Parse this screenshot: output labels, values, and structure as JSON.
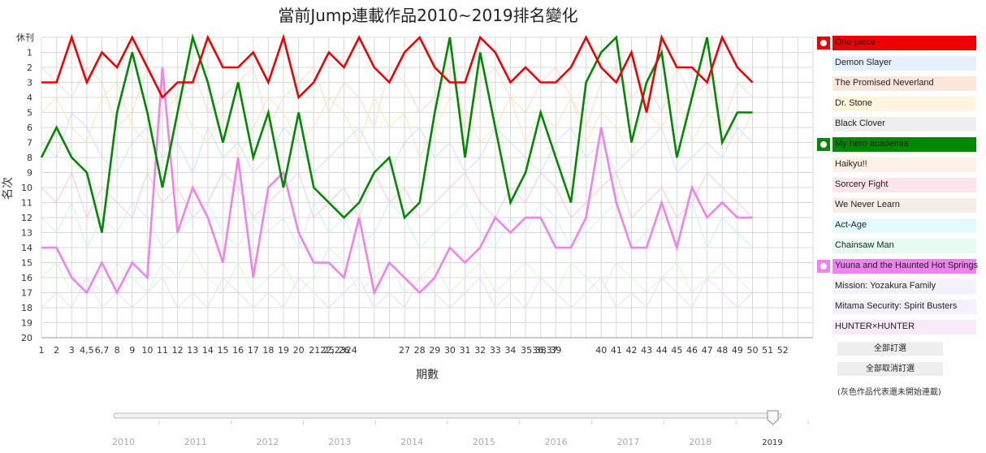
{
  "chart_data": {
    "type": "line",
    "title": "當前Jump連載作品2010~2019排名變化",
    "xlabel": "期數",
    "ylabel": "名次",
    "y_top_label": "休刊",
    "y_ticks": [
      "1",
      "2",
      "3",
      "4",
      "5",
      "6",
      "7",
      "8",
      "9",
      "10",
      "11",
      "12",
      "13",
      "14",
      "15",
      "16",
      "17",
      "18",
      "19",
      "20"
    ],
    "x_tick_labels": [
      "1",
      "2",
      "3",
      "4,5",
      "6,7",
      "8",
      "9",
      "10",
      "11",
      "12",
      "13",
      "14",
      "15",
      "16",
      "17",
      "18",
      "19",
      "20",
      "2122,2324",
      "25",
      "26",
      "27",
      "28",
      "29",
      "30",
      "31",
      "32",
      "33",
      "34",
      "3536,37",
      "38",
      "39",
      "40",
      "41",
      "42",
      "43",
      "44",
      "45",
      "46",
      "47",
      "48",
      "49",
      "50",
      "51",
      "52"
    ],
    "x_tick_slots": [
      1,
      2,
      3,
      4,
      5,
      6,
      7,
      8,
      9,
      10,
      11,
      12,
      13,
      14,
      15,
      16,
      17,
      18,
      19,
      20,
      21,
      22,
      23,
      24,
      25,
      26,
      27,
      28,
      29,
      30,
      31,
      32,
      33,
      34,
      35,
      36,
      37,
      38,
      39,
      40,
      41,
      42,
      43,
      44,
      45,
      46,
      47,
      48,
      49,
      50,
      51,
      52
    ],
    "x_tick_text_slots": [
      1,
      2,
      3,
      4,
      5,
      6,
      7,
      8,
      9,
      10,
      11,
      12,
      13,
      14,
      15,
      16,
      17,
      18,
      19,
      20,
      21,
      25,
      26,
      27,
      28,
      29,
      30,
      31,
      32,
      33,
      34,
      35,
      38,
      39,
      40,
      41,
      42,
      43,
      44,
      45,
      46,
      47,
      48,
      49,
      50,
      51,
      52
    ],
    "ylim": [
      0,
      20
    ],
    "grid": true,
    "legend_placement": "right",
    "series": [
      {
        "name": "One piece",
        "color": "#ee0000",
        "selected": true,
        "values": [
          3,
          3,
          0,
          3,
          1,
          2,
          0,
          2,
          4,
          3,
          3,
          0,
          2,
          2,
          1,
          3,
          0,
          4,
          3,
          1,
          2,
          0,
          2,
          3,
          1,
          0,
          2,
          3,
          3,
          0,
          1,
          3,
          2,
          3,
          3,
          2,
          0,
          2,
          3,
          1,
          5,
          0,
          2,
          2,
          3,
          0,
          2,
          3
        ]
      },
      {
        "name": "Demon Slayer",
        "color": "#e6f0fc",
        "selected": false
      },
      {
        "name": "The Promised Neverland",
        "color": "#fde6dc",
        "selected": false
      },
      {
        "name": "Dr. Stone",
        "color": "#fdf6dc",
        "selected": false
      },
      {
        "name": "Black Clover",
        "color": "#eeeeee",
        "selected": false
      },
      {
        "name": "My hero academia",
        "color": "#008800",
        "selected": true,
        "values": [
          8,
          6,
          8,
          9,
          13,
          5,
          1,
          5,
          10,
          5,
          0,
          3,
          7,
          3,
          8,
          5,
          10,
          5,
          10,
          11,
          12,
          11,
          9,
          8,
          12,
          11,
          5,
          0,
          8,
          1,
          6,
          11,
          9,
          5,
          8,
          11,
          3,
          1,
          0,
          7,
          3,
          1,
          8,
          4,
          0,
          7,
          5,
          5
        ]
      },
      {
        "name": "Haikyu!!",
        "color": "#fdf0e6",
        "selected": false
      },
      {
        "name": "Sorcery Fight",
        "color": "#fce4ec",
        "selected": false
      },
      {
        "name": "We Never Learn",
        "color": "#f5ede6",
        "selected": false
      },
      {
        "name": "Act-Age",
        "color": "#e4fafc",
        "selected": false
      },
      {
        "name": "Chainsaw Man",
        "color": "#e6fcf0",
        "selected": false
      },
      {
        "name": "Yuuna and the Haunted Hot Springs",
        "color": "#ee82ee",
        "selected": true,
        "values": [
          14,
          14,
          16,
          17,
          15,
          17,
          15,
          16,
          2,
          13,
          10,
          12,
          15,
          8,
          16,
          10,
          9,
          13,
          15,
          15,
          16,
          12,
          17,
          15,
          16,
          17,
          16,
          14,
          15,
          14,
          12,
          13,
          12,
          12,
          14,
          14,
          12,
          6,
          11,
          14,
          14,
          11,
          14,
          10,
          12,
          11,
          12,
          12
        ]
      },
      {
        "name": "Mission: Yozakura Family",
        "color": "#f3f1fa",
        "selected": false
      },
      {
        "name": "Mitama Security: Spirit Busters",
        "color": "#f5f0fc",
        "selected": false
      },
      {
        "name": "HUNTER×HUNTER",
        "color": "#f8eaf8",
        "selected": false
      }
    ],
    "faint_series": [
      [
        2,
        3,
        4,
        2,
        3,
        6,
        5,
        2,
        3,
        4,
        2,
        5,
        4,
        3,
        2,
        6,
        4,
        3,
        2,
        5,
        3,
        4,
        6,
        2,
        3,
        5,
        4,
        2,
        6,
        3,
        2,
        4,
        5,
        3,
        2,
        4,
        6,
        3,
        2,
        4,
        3,
        5,
        2,
        4,
        3,
        6,
        3,
        4
      ],
      [
        5,
        4,
        6,
        7,
        4,
        3,
        6,
        7,
        5,
        4,
        6,
        7,
        5,
        8,
        6,
        4,
        5,
        7,
        6,
        4,
        5,
        7,
        4,
        6,
        5,
        8,
        6,
        4,
        5,
        7,
        6,
        4,
        7,
        5,
        6,
        4,
        7,
        5,
        6,
        8,
        5,
        6,
        4,
        7,
        5,
        6,
        7,
        5
      ],
      [
        7,
        8,
        5,
        6,
        8,
        9,
        7,
        6,
        8,
        7,
        9,
        6,
        8,
        7,
        9,
        8,
        6,
        7,
        9,
        8,
        7,
        6,
        8,
        9,
        7,
        6,
        8,
        7,
        9,
        8,
        6,
        7,
        8,
        9,
        7,
        6,
        8,
        7,
        9,
        8,
        7,
        6,
        9,
        8,
        7,
        8,
        6,
        7
      ],
      [
        10,
        11,
        9,
        12,
        10,
        11,
        12,
        9,
        11,
        10,
        12,
        11,
        9,
        10,
        12,
        11,
        10,
        9,
        12,
        11,
        10,
        12,
        9,
        11,
        10,
        12,
        11,
        10,
        9,
        11,
        12,
        10,
        11,
        9,
        10,
        12,
        11,
        10,
        9,
        12,
        11,
        10,
        12,
        11,
        9,
        10,
        11,
        12
      ],
      [
        12,
        13,
        11,
        14,
        12,
        13,
        11,
        12,
        14,
        13,
        12,
        11,
        13,
        14,
        12,
        13,
        12,
        14,
        11,
        13,
        12,
        14,
        13,
        11,
        12,
        14,
        13,
        12,
        11,
        13,
        14,
        12,
        13,
        11,
        12,
        14,
        13,
        12,
        11,
        14,
        13,
        12,
        13,
        11,
        14,
        12,
        13,
        14
      ],
      [
        16,
        15,
        17,
        16,
        17,
        15,
        16,
        17,
        15,
        16,
        14,
        16,
        17,
        15,
        17,
        16,
        15,
        17,
        16,
        14,
        15,
        17,
        16,
        15,
        17,
        16,
        15,
        17,
        16,
        15,
        17,
        16,
        15,
        16,
        17,
        15,
        16,
        17,
        15,
        16,
        17,
        16,
        15,
        17,
        16,
        15,
        16,
        17
      ],
      [
        18,
        17,
        18,
        16,
        18,
        17,
        18,
        17,
        16,
        18,
        17,
        18,
        16,
        17,
        18,
        17,
        18,
        16,
        17,
        18,
        17,
        16,
        18,
        17,
        18,
        16,
        17,
        18,
        17,
        16,
        18,
        17,
        18,
        16,
        17,
        18,
        17,
        16,
        18,
        17,
        18,
        16,
        17,
        18,
        16,
        17,
        18,
        17
      ]
    ],
    "faint_colors": [
      "#fbd9c8",
      "#f9e7b8",
      "#c8e3f8",
      "#f6c8d8",
      "#c8f1f3",
      "#d6f5d6",
      "#eed8f8"
    ],
    "buttons": {
      "select_all": "全部訂選",
      "deselect_all": "全部取消訂選"
    },
    "note": "(灰色作品代表還未開始連載)",
    "slider": {
      "years": [
        "2010",
        "2011",
        "2012",
        "2013",
        "2014",
        "2015",
        "2016",
        "2017",
        "2018",
        "2019"
      ],
      "selected": "2019"
    }
  }
}
